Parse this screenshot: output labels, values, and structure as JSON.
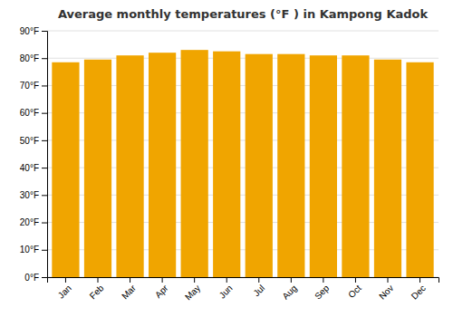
{
  "chart_data": {
    "type": "bar",
    "title": "Average monthly temperatures (°F ) in Kampong Kadok",
    "categories": [
      "Jan",
      "Feb",
      "Mar",
      "Apr",
      "May",
      "Jun",
      "Jul",
      "Aug",
      "Sep",
      "Oct",
      "Nov",
      "Dec"
    ],
    "values": [
      78.5,
      79.5,
      81.0,
      82.0,
      83.0,
      82.5,
      81.5,
      81.5,
      81.0,
      81.0,
      79.5,
      78.5
    ],
    "color": "#F0A500",
    "ylim": [
      0,
      90
    ],
    "yticks": [
      {
        "value": 0,
        "label": "0°F"
      },
      {
        "value": 10,
        "label": "10°F"
      },
      {
        "value": 20,
        "label": "20°F"
      },
      {
        "value": 30,
        "label": "30°F"
      },
      {
        "value": 40,
        "label": "40°F"
      },
      {
        "value": 50,
        "label": "50°F"
      },
      {
        "value": 60,
        "label": "60°F"
      },
      {
        "value": 70,
        "label": "70°F"
      },
      {
        "value": 80,
        "label": "80°F"
      },
      {
        "value": 90,
        "label": "90°F"
      }
    ],
    "grid": true
  }
}
